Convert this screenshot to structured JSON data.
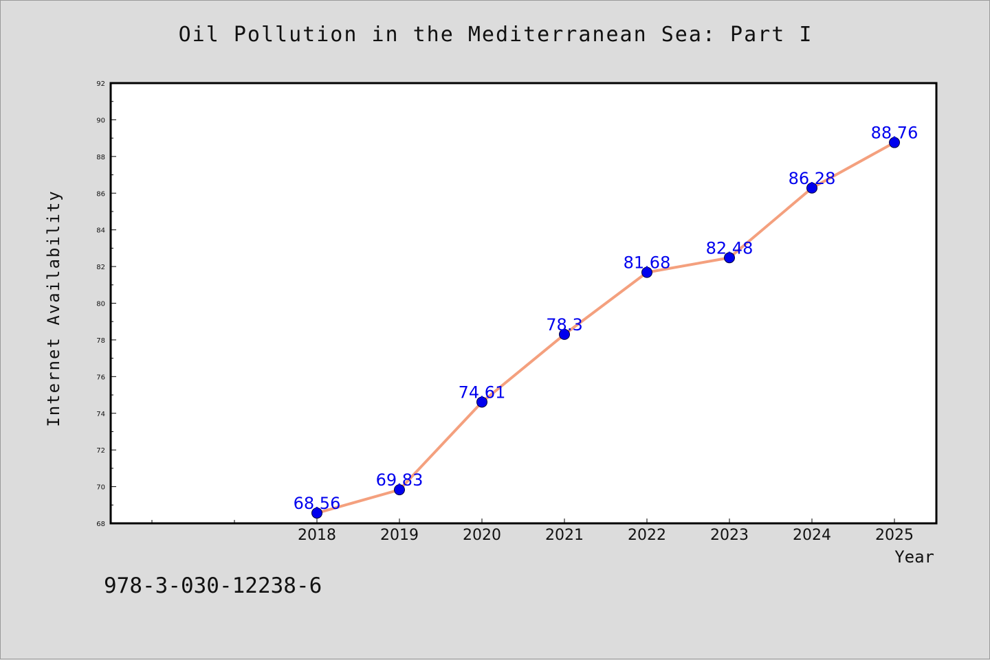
{
  "chart_data": {
    "type": "line",
    "title": "Oil Pollution in the Mediterranean Sea: Part I",
    "xlabel": "Year",
    "ylabel": "Internet Availability",
    "x": [
      "2018",
      "2019",
      "2020",
      "2021",
      "2022",
      "2023",
      "2024",
      "2025"
    ],
    "series": [
      {
        "values": [
          68.56,
          69.83,
          74.61,
          78.3,
          81.68,
          82.48,
          86.28,
          88.76
        ]
      }
    ],
    "data_labels": [
      "68.56",
      "69.83",
      "74.61",
      "78.3",
      "81.68",
      "82.48",
      "86.28",
      "88.76"
    ],
    "ylim": [
      68,
      92
    ],
    "yticks": [
      68,
      70,
      72,
      74,
      76,
      78,
      80,
      82,
      84,
      86,
      88,
      90,
      92
    ],
    "grid": false,
    "legend": "none",
    "colors": {
      "line": "#f4a07e",
      "marker": "#0000ee",
      "label": "#0000ee",
      "background": "#dcdcdc",
      "plot_area": "#ffffff"
    }
  },
  "footer": {
    "isbn": "978-3-030-12238-6"
  }
}
